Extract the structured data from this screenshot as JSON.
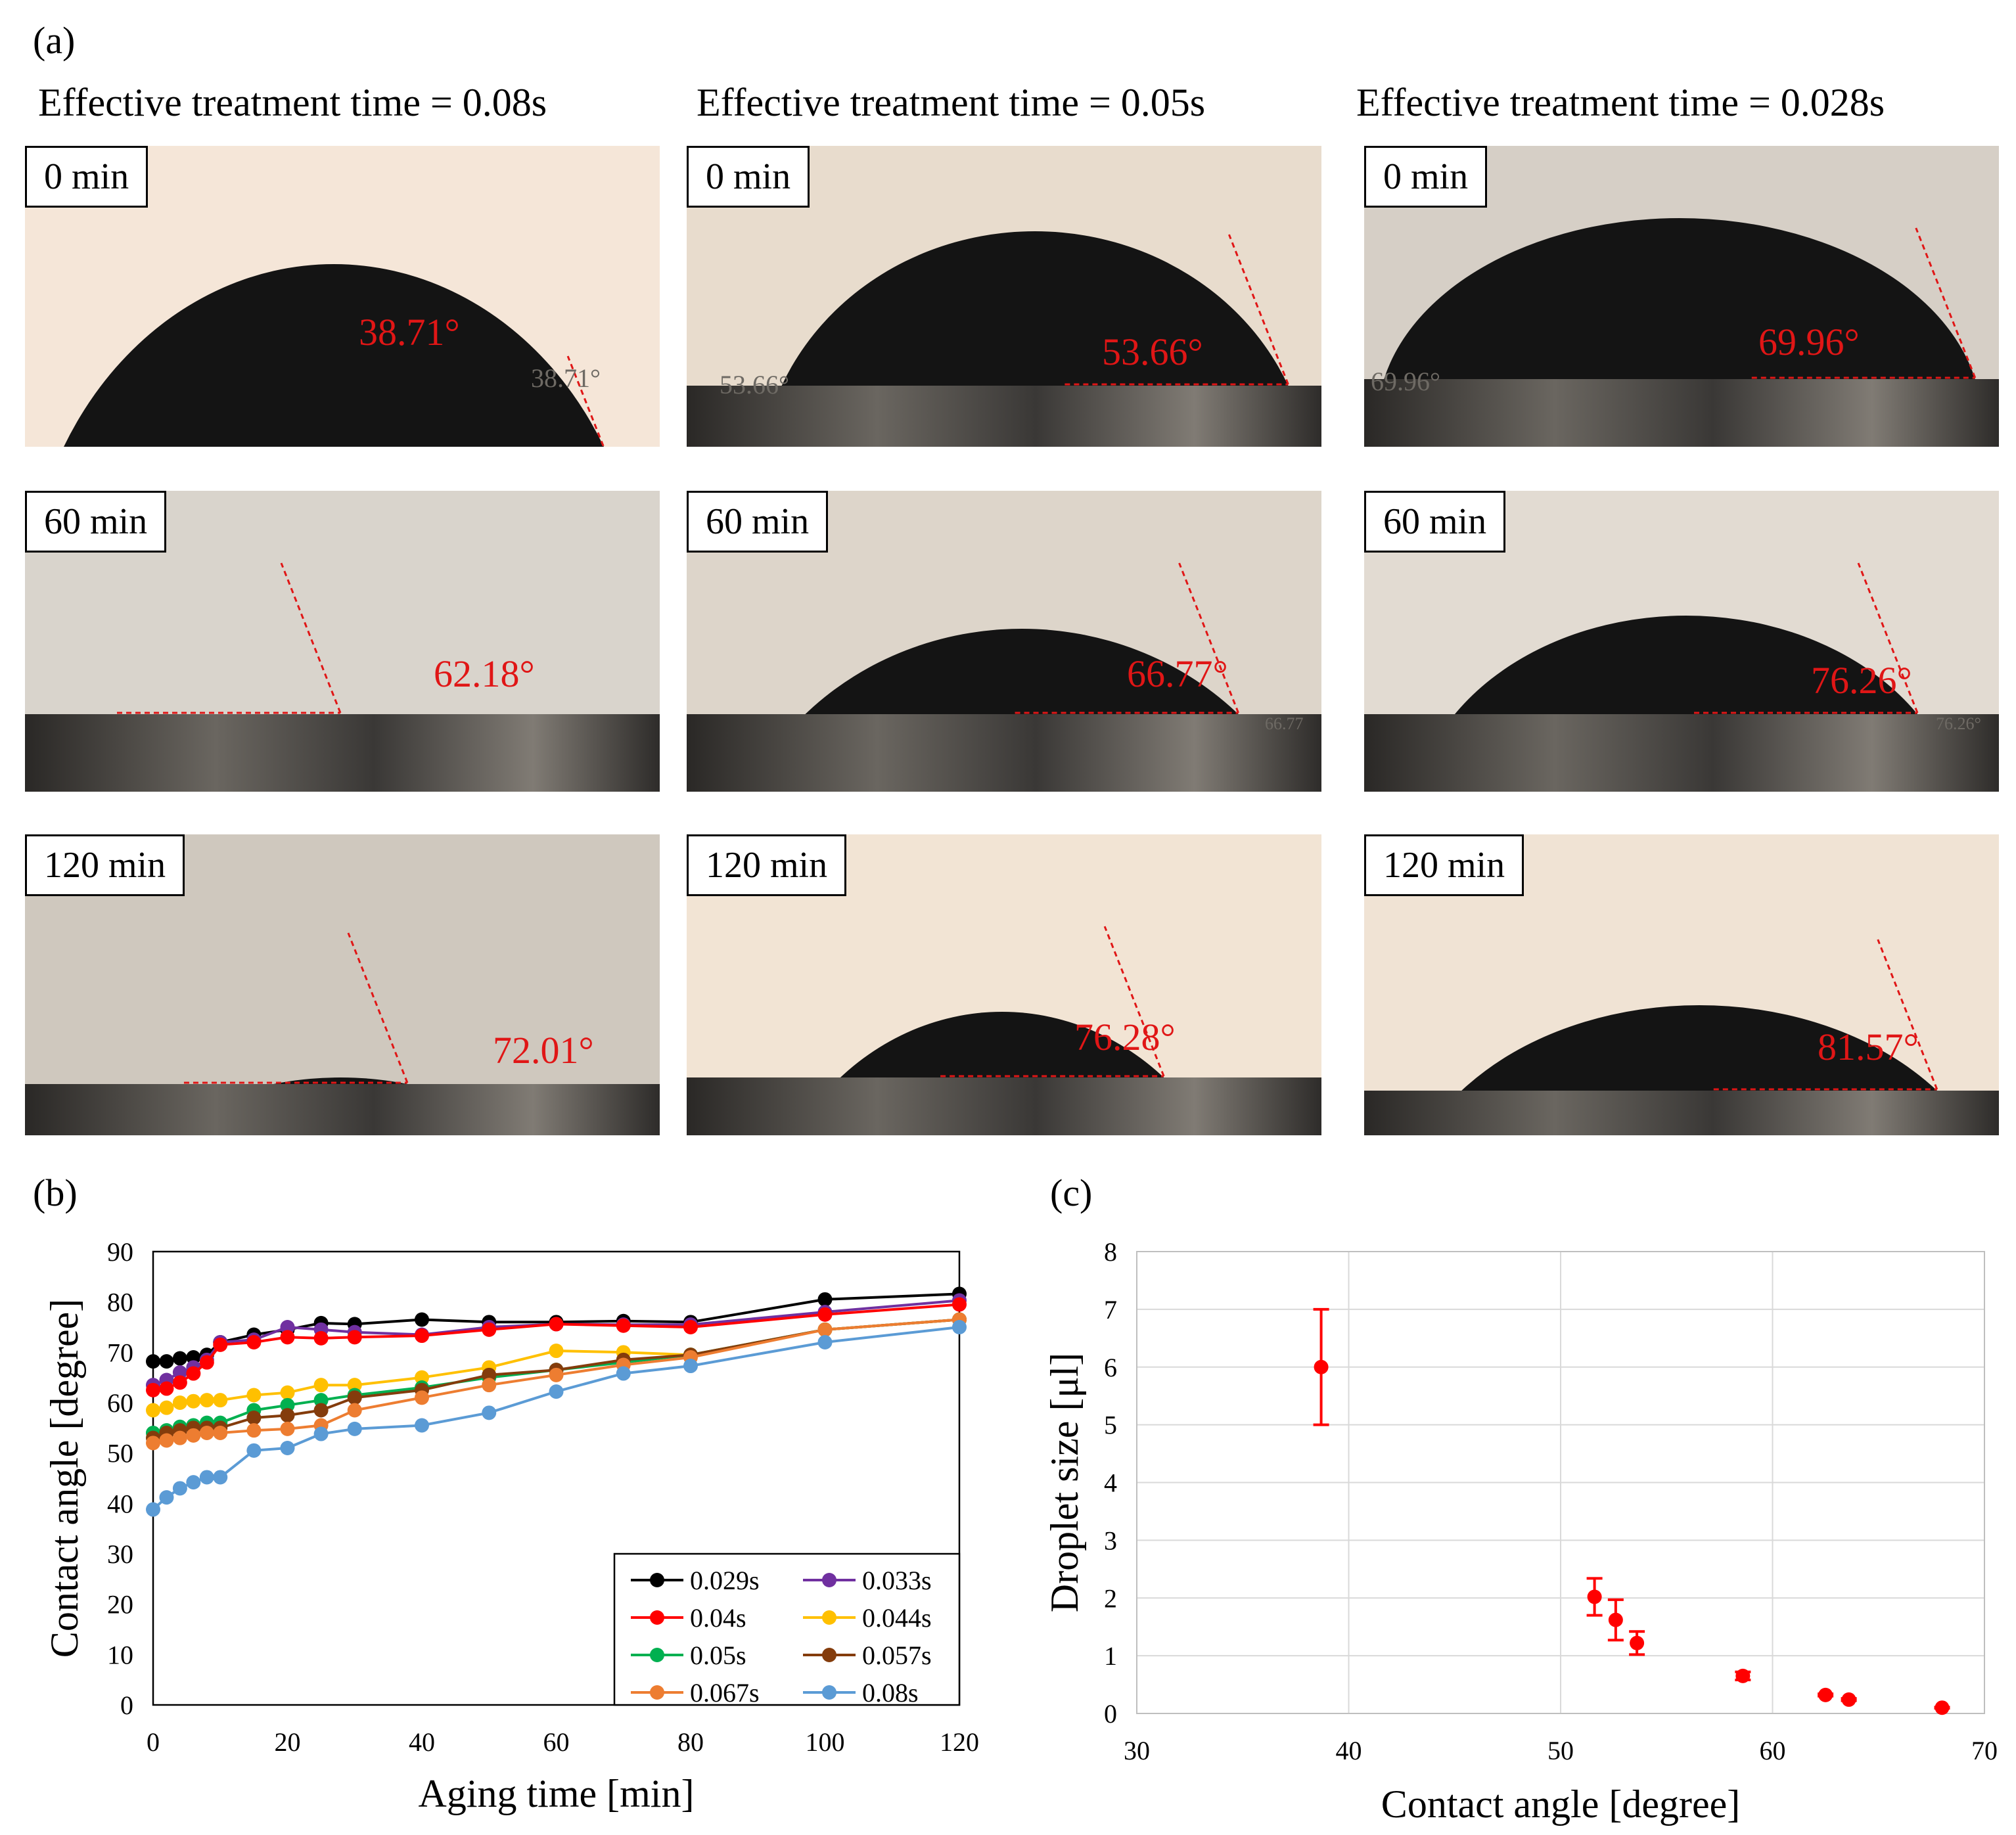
{
  "panel_a": {
    "label": "(a)",
    "columns": [
      {
        "title": "Effective treatment time = 0.08s",
        "photos": [
          {
            "time_label": "0 min",
            "angle": "38.71°",
            "ghost": "38.71°",
            "bg": "#f5e6d8"
          },
          {
            "time_label": "60 min",
            "angle": "62.18°",
            "ghost": "",
            "bg": "#d9d4cc"
          },
          {
            "time_label": "120 min",
            "angle": "72.01°",
            "ghost": "",
            "bg": "#cfc8be"
          }
        ]
      },
      {
        "title": "Effective treatment time = 0.05s",
        "photos": [
          {
            "time_label": "0 min",
            "angle": "53.66°",
            "ghost": "53.66°",
            "bg": "#e8dccd"
          },
          {
            "time_label": "60 min",
            "angle": "66.77°",
            "ghost": "66.77",
            "bg": "#ddd5ca"
          },
          {
            "time_label": "120 min",
            "angle": "76.28°",
            "ghost": "",
            "bg": "#f2e4d4"
          }
        ]
      },
      {
        "title": "Effective treatment time = 0.028s",
        "photos": [
          {
            "time_label": "0 min",
            "angle": "69.96°",
            "ghost": "69.96°",
            "bg": "#d6cfc6"
          },
          {
            "time_label": "60 min",
            "angle": "76.26°",
            "ghost": "76.26°",
            "bg": "#e2dbd2"
          },
          {
            "time_label": "120 min",
            "angle": "81.57°",
            "ghost": "",
            "bg": "#f0e3d4"
          }
        ]
      }
    ]
  },
  "chart_data": [
    {
      "type": "line",
      "panel_label": "(b)",
      "xlabel": "Aging time [min]",
      "ylabel": "Contact angle [degree]",
      "xlim": [
        0,
        120
      ],
      "ylim": [
        0,
        90
      ],
      "xticks": [
        0,
        20,
        40,
        60,
        80,
        100,
        120
      ],
      "yticks": [
        0,
        10,
        20,
        30,
        40,
        50,
        60,
        70,
        80,
        90
      ],
      "grid": false,
      "legend_position": "bottom-right",
      "x": [
        0,
        2,
        4,
        6,
        8,
        10,
        15,
        20,
        25,
        30,
        40,
        50,
        60,
        70,
        80,
        100,
        120
      ],
      "series": [
        {
          "name": "0.029s",
          "color": "#000000",
          "values": [
            68.2,
            68.2,
            68.8,
            69.0,
            69.5,
            72.0,
            73.5,
            74.5,
            75.8,
            75.6,
            76.5,
            76.0,
            76.0,
            76.2,
            76.0,
            80.5,
            81.6
          ]
        },
        {
          "name": "0.033s",
          "color": "#7030a0",
          "values": [
            63.5,
            64.5,
            66.0,
            67.0,
            68.5,
            72.0,
            72.5,
            75.0,
            74.5,
            74.0,
            73.5,
            75.0,
            75.6,
            75.5,
            75.5,
            78.0,
            80.3
          ]
        },
        {
          "name": "0.04s",
          "color": "#ff0000",
          "values": [
            62.5,
            62.8,
            64.0,
            65.8,
            68.0,
            71.5,
            72.0,
            73.0,
            72.8,
            73.0,
            73.3,
            74.5,
            75.6,
            75.3,
            75.0,
            77.5,
            79.5
          ]
        },
        {
          "name": "0.044s",
          "color": "#ffc000",
          "values": [
            58.5,
            59.0,
            60.0,
            60.3,
            60.5,
            60.5,
            61.5,
            62.0,
            63.5,
            63.5,
            65.0,
            67.0,
            70.3,
            70.0,
            69.5,
            74.5,
            76.5
          ]
        },
        {
          "name": "0.05s",
          "color": "#00b050",
          "values": [
            54.0,
            54.5,
            55.2,
            55.5,
            56.0,
            56.0,
            58.5,
            59.5,
            60.5,
            61.5,
            63.0,
            65.0,
            66.5,
            68.0,
            69.5,
            74.5,
            76.5
          ]
        },
        {
          "name": "0.057s",
          "color": "#843c0c",
          "values": [
            53.0,
            54.0,
            54.5,
            55.0,
            55.0,
            55.0,
            57.0,
            57.5,
            58.5,
            61.0,
            62.5,
            65.5,
            66.5,
            68.5,
            69.5,
            74.5,
            76.5
          ]
        },
        {
          "name": "0.067s",
          "color": "#ed7d31",
          "values": [
            52.0,
            52.5,
            53.0,
            53.5,
            54.0,
            54.0,
            54.5,
            54.8,
            55.5,
            58.5,
            61.0,
            63.5,
            65.5,
            67.5,
            69.0,
            74.5,
            76.5
          ]
        },
        {
          "name": "0.08s",
          "color": "#5b9bd5",
          "values": [
            38.8,
            41.2,
            43.0,
            44.2,
            45.2,
            45.2,
            50.5,
            51.0,
            53.8,
            54.8,
            55.5,
            58.0,
            62.2,
            65.8,
            67.3,
            72.0,
            75.0
          ]
        }
      ]
    },
    {
      "type": "scatter",
      "panel_label": "(c)",
      "xlabel": "Contact angle [degree]",
      "ylabel": "Droplet size [μl]",
      "xlim": [
        30,
        70
      ],
      "ylim": [
        0,
        8
      ],
      "xticks": [
        30,
        40,
        50,
        60,
        70
      ],
      "yticks": [
        0,
        1,
        2,
        3,
        4,
        5,
        6,
        7,
        8
      ],
      "grid": true,
      "color": "#ff0000",
      "points": [
        {
          "x": 38.7,
          "y": 6.0,
          "err": 1.0
        },
        {
          "x": 51.6,
          "y": 2.02,
          "err": 0.32
        },
        {
          "x": 52.6,
          "y": 1.62,
          "err": 0.35
        },
        {
          "x": 53.6,
          "y": 1.22,
          "err": 0.2
        },
        {
          "x": 58.6,
          "y": 0.65,
          "err": 0.07
        },
        {
          "x": 62.5,
          "y": 0.32,
          "err": 0.02
        },
        {
          "x": 63.6,
          "y": 0.24,
          "err": 0.02
        },
        {
          "x": 68.0,
          "y": 0.1,
          "err": 0.01
        }
      ]
    }
  ]
}
